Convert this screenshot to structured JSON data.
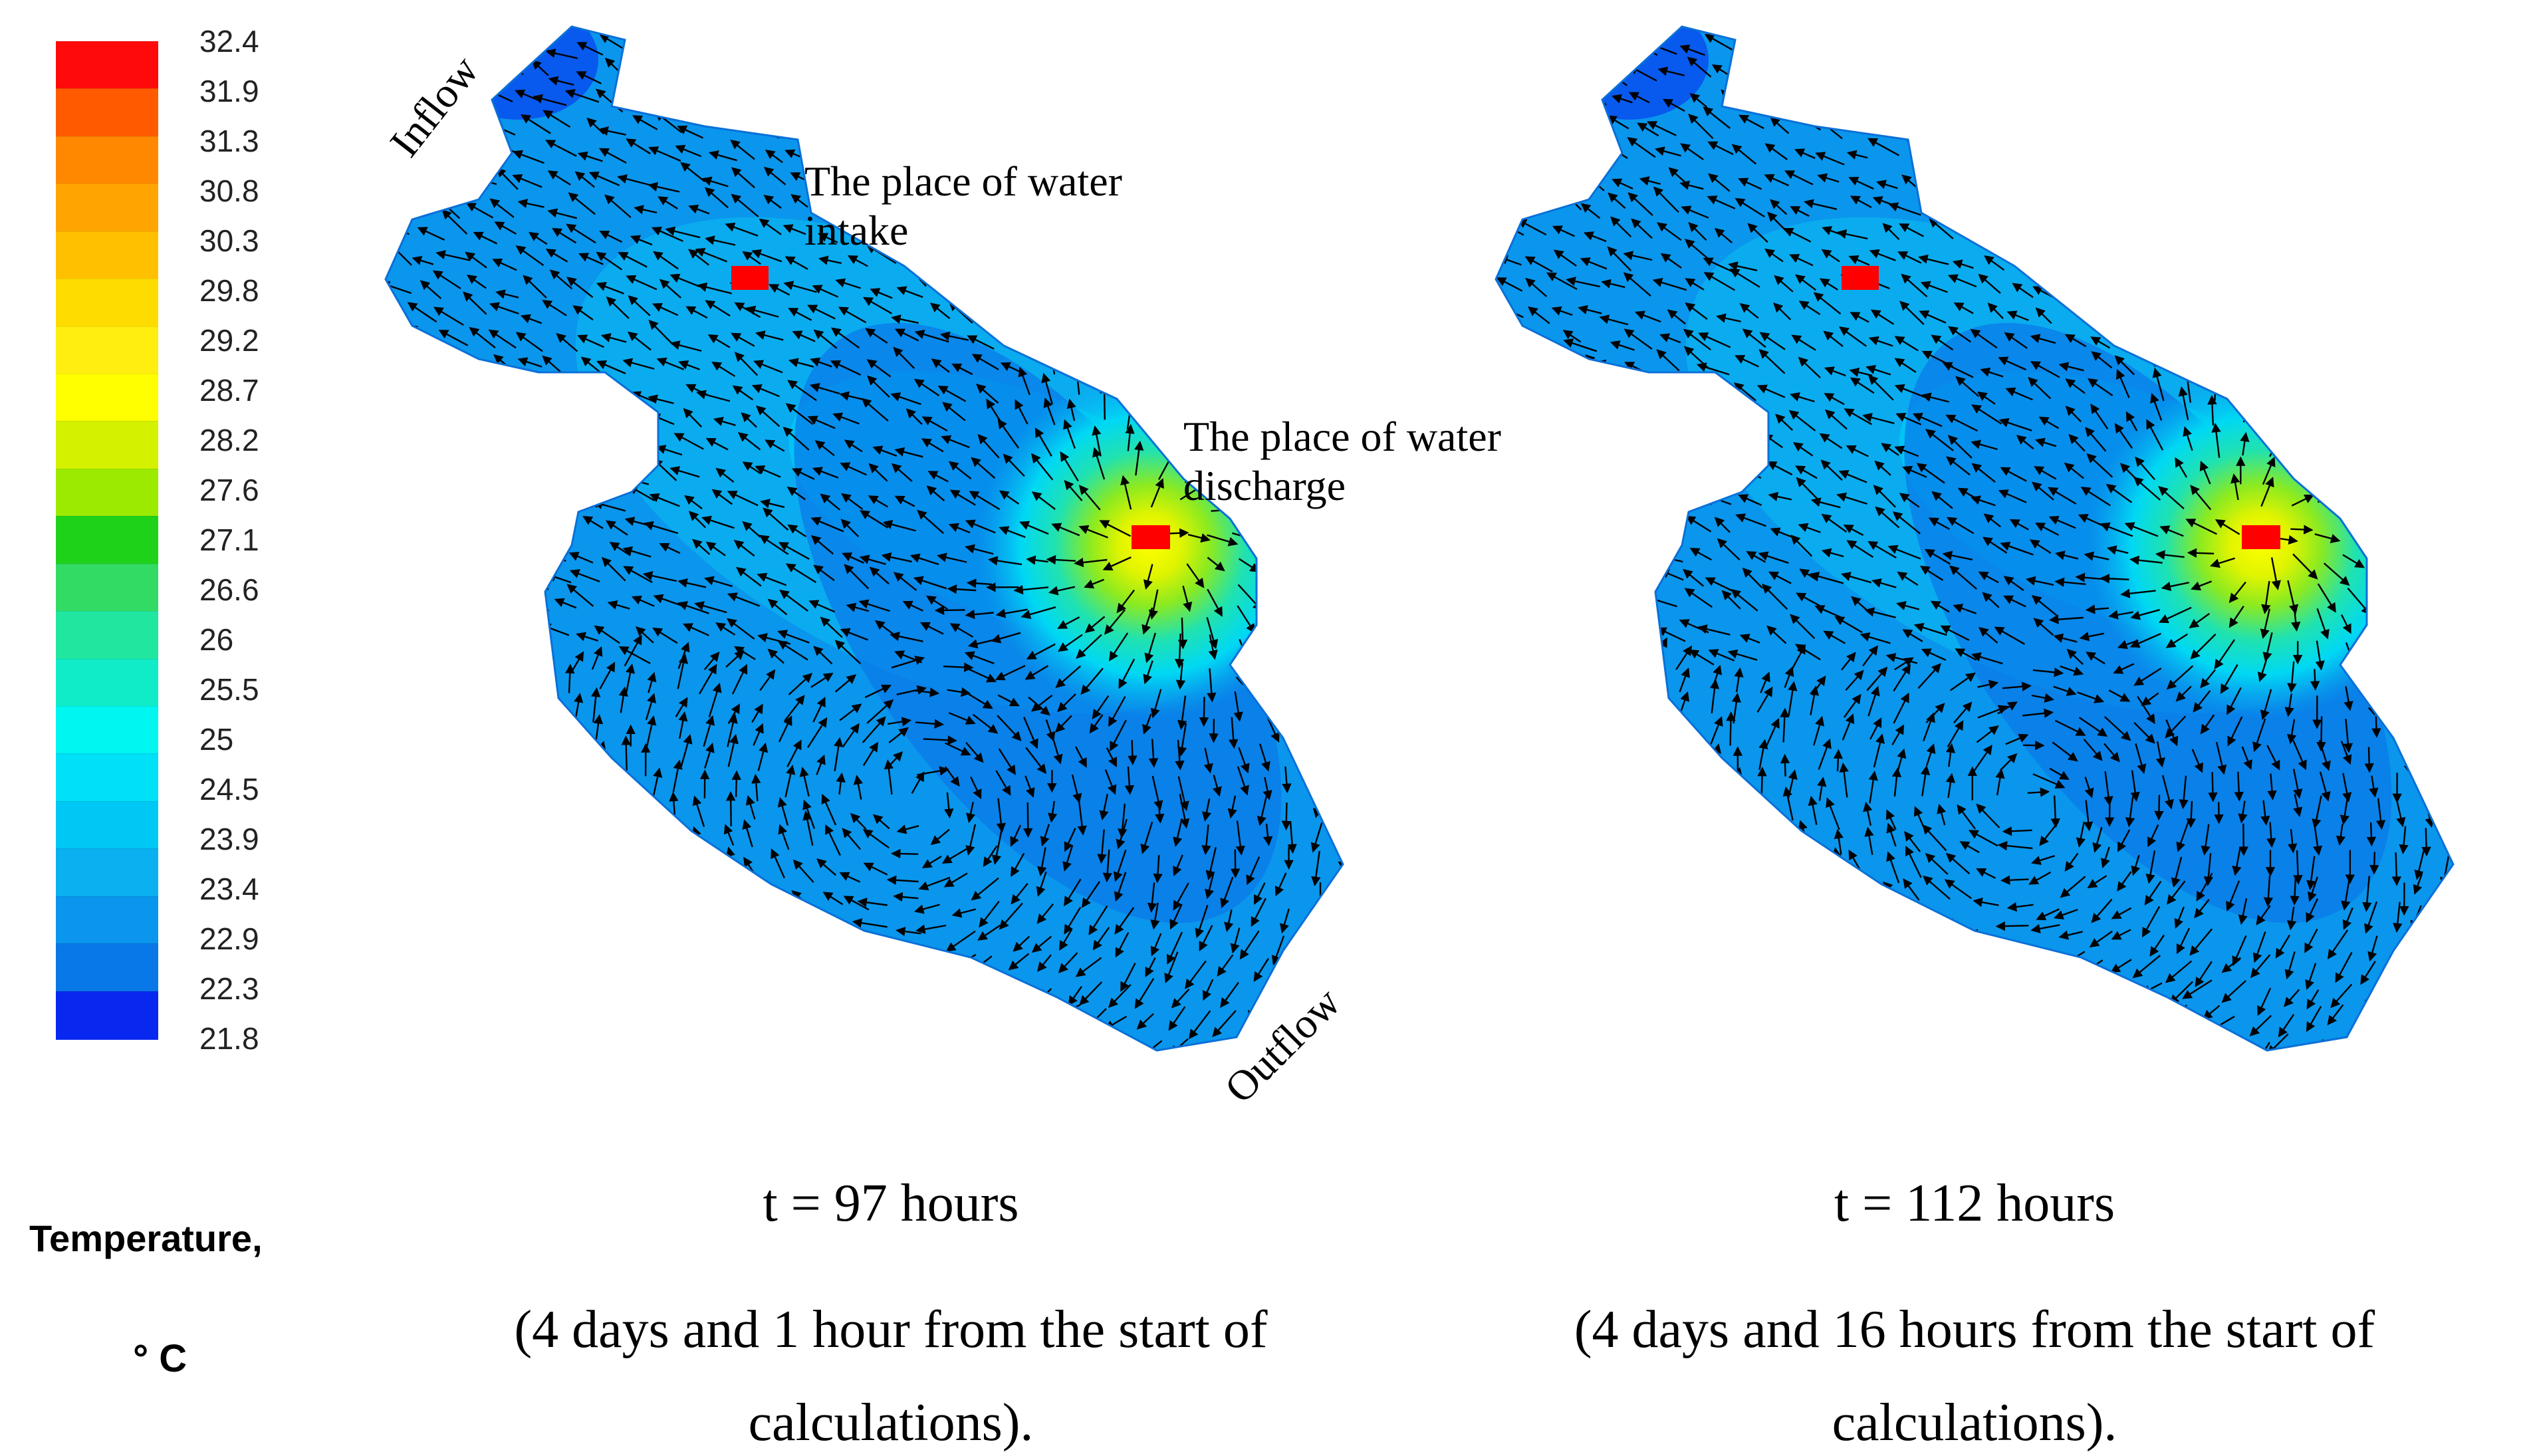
{
  "legend": {
    "title_line1": "Temperature,",
    "title_line2": "° C",
    "ticks": [
      "32.4",
      "31.9",
      "31.3",
      "30.8",
      "30.3",
      "29.8",
      "29.2",
      "28.7",
      "28.2",
      "27.6",
      "27.1",
      "26.6",
      "26",
      "25.5",
      "25",
      "24.5",
      "23.9",
      "23.4",
      "22.9",
      "22.3",
      "21.8"
    ],
    "colors": [
      "#ff0a0a",
      "#ff5a00",
      "#ff8800",
      "#ffa400",
      "#ffc000",
      "#ffdc00",
      "#ffee10",
      "#ffff00",
      "#d4f200",
      "#9cea00",
      "#1ed21a",
      "#32dc64",
      "#20e6a0",
      "#10ecc8",
      "#00f6f0",
      "#00e0f6",
      "#00c8f4",
      "#0ab0f0",
      "#0a96ec",
      "#0878e8",
      "#0828f0"
    ]
  },
  "panels": [
    {
      "time_label": "t = 97 hours",
      "subtitle_line1": "(4 days and 1 hour from the start of",
      "subtitle_line2": "calculations).",
      "intake_label_line1": "The place of water",
      "intake_label_line2": "intake",
      "discharge_label_line1": "The place of water",
      "discharge_label_line2": "discharge",
      "inflow_label": "Inflow",
      "outflow_label": "Outflow"
    },
    {
      "time_label": "t = 112 hours",
      "subtitle_line1": "(4 days and 16 hours from the start of",
      "subtitle_line2": "calculations)."
    }
  ],
  "colors": {
    "marker": "#ff0000",
    "water_base": "#0a96ec",
    "arrow": "#000000"
  }
}
